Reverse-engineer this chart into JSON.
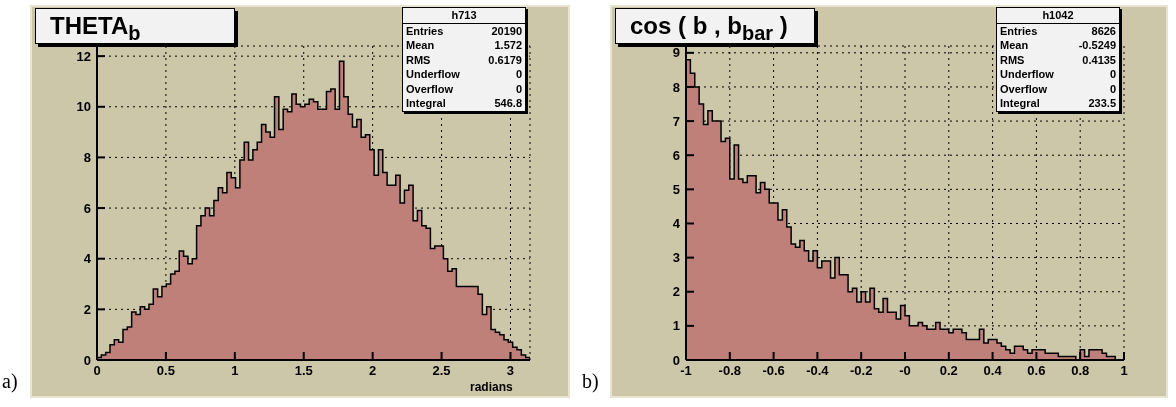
{
  "chart_data": [
    {
      "type": "histogram",
      "title": "THETA$_{b}$",
      "xlabel": "radians",
      "color": "#c0807a",
      "bins": [
        0,
        0.0314,
        0.0628,
        0.0942,
        0.1257,
        0.1571,
        0.1885,
        0.2199,
        0.2513,
        0.2827,
        0.3142,
        0.3456,
        0.377,
        0.4084,
        0.4398,
        0.4712,
        0.5027,
        0.5341,
        0.5655,
        0.5969,
        0.6283,
        0.6597,
        0.6912,
        0.7226,
        0.754,
        0.7854,
        0.8168,
        0.8482,
        0.8796,
        0.9111,
        0.9425,
        0.9739,
        1.0053,
        1.0367,
        1.0681,
        1.0996,
        1.131,
        1.1624,
        1.1938,
        1.2252,
        1.2566,
        1.2881,
        1.3195,
        1.3509,
        1.3823,
        1.4137,
        1.4451,
        1.4765,
        1.508,
        1.5394,
        1.5708,
        1.6022,
        1.6336,
        1.665,
        1.6965,
        1.7279,
        1.7593,
        1.7907,
        1.8221,
        1.8535,
        1.885,
        1.9164,
        1.9478,
        1.9792,
        2.0106,
        2.042,
        2.0735,
        2.1049,
        2.1363,
        2.1677,
        2.1991,
        2.2305,
        2.2619,
        2.2934,
        2.3248,
        2.3562,
        2.3876,
        2.419,
        2.4504,
        2.4819,
        2.5133,
        2.5447,
        2.5761,
        2.6075,
        2.6389,
        2.6704,
        2.7018,
        2.7332,
        2.7646,
        2.796,
        2.8274,
        2.8588,
        2.8903,
        2.9217,
        2.9531,
        2.9845,
        3.0159,
        3.0473,
        3.0788,
        3.1102,
        3.1416
      ],
      "values": [
        0.1,
        0.2,
        0.3,
        0.6,
        0.8,
        0.7,
        1.2,
        1.3,
        1.9,
        1.8,
        2.1,
        2.0,
        2.2,
        2.8,
        2.5,
        2.9,
        3.0,
        3.4,
        3.5,
        4.3,
        4.1,
        3.8,
        4.0,
        5.3,
        5.7,
        6.0,
        5.7,
        6.3,
        6.8,
        6.6,
        7.4,
        7.2,
        6.8,
        7.9,
        8.6,
        7.9,
        8.3,
        8.6,
        9.3,
        9.0,
        8.8,
        10.4,
        9.1,
        9.9,
        9.8,
        10.5,
        10.1,
        10.0,
        10.1,
        10.3,
        10.2,
        9.9,
        9.9,
        10.6,
        10.7,
        9.9,
        11.8,
        10.4,
        9.7,
        9.2,
        9.5,
        8.8,
        8.9,
        8.3,
        7.3,
        8.3,
        7.4,
        6.9,
        6.9,
        7.3,
        6.2,
        6.7,
        6.9,
        5.5,
        5.9,
        5.3,
        5.2,
        4.4,
        4.5,
        4.5,
        4.0,
        3.5,
        3.6,
        2.9,
        2.9,
        2.9,
        2.9,
        2.9,
        2.6,
        1.8,
        2.1,
        1.2,
        1.1,
        1.0,
        0.8,
        0.7,
        0.5,
        0.4,
        0.2,
        0.1
      ],
      "xlim": [
        0,
        3.1416
      ],
      "xticks": [
        0,
        0.5,
        1,
        1.5,
        2,
        2.5,
        3
      ],
      "ylim": [
        0,
        12.4
      ],
      "yticks": [
        0,
        2,
        4,
        6,
        8,
        10,
        12
      ],
      "grid": true,
      "annotations": [
        "a)",
        "h713",
        "Entries",
        "20190",
        "Mean",
        "1.572",
        "RMS",
        "0.6179",
        "Underflow",
        "0",
        "Overflow",
        "0",
        "Integral",
        "546.8"
      ]
    },
    {
      "type": "histogram",
      "title": "cos ( b , b$_{bar}$ )",
      "color": "#c0807a",
      "bins": [
        -1,
        -0.98,
        -0.96,
        -0.94,
        -0.92,
        -0.9,
        -0.88,
        -0.86,
        -0.84,
        -0.82,
        -0.8,
        -0.78,
        -0.76,
        -0.74,
        -0.72,
        -0.7,
        -0.68,
        -0.66,
        -0.64,
        -0.62,
        -0.6,
        -0.58,
        -0.56,
        -0.54,
        -0.52,
        -0.5,
        -0.48,
        -0.46,
        -0.44,
        -0.42,
        -0.4,
        -0.38,
        -0.36,
        -0.34,
        -0.32,
        -0.3,
        -0.28,
        -0.26,
        -0.24,
        -0.22,
        -0.2,
        -0.18,
        -0.16,
        -0.14,
        -0.12,
        -0.1,
        -0.08,
        -0.06,
        -0.04,
        -0.02,
        0,
        0.02,
        0.04,
        0.06,
        0.08,
        0.1,
        0.12,
        0.14,
        0.16,
        0.18,
        0.2,
        0.22,
        0.24,
        0.26,
        0.28,
        0.3,
        0.32,
        0.34,
        0.36,
        0.38,
        0.4,
        0.42,
        0.44,
        0.46,
        0.48,
        0.5,
        0.52,
        0.54,
        0.56,
        0.58,
        0.6,
        0.62,
        0.64,
        0.66,
        0.68,
        0.7,
        0.72,
        0.74,
        0.76,
        0.78,
        0.8,
        0.82,
        0.84,
        0.86,
        0.88,
        0.9,
        0.92,
        0.94,
        0.96,
        0.98,
        1
      ],
      "values": [
        8.8,
        8.4,
        8.0,
        7.5,
        6.9,
        7.3,
        7.0,
        7.0,
        6.4,
        6.5,
        5.3,
        6.3,
        5.3,
        5.2,
        5.4,
        5.4,
        4.9,
        5.2,
        5.0,
        4.6,
        4.6,
        4.1,
        4.4,
        3.9,
        3.4,
        3.3,
        3.5,
        3.2,
        2.9,
        3.2,
        2.7,
        2.9,
        2.9,
        2.4,
        3.0,
        2.5,
        2.5,
        2.0,
        2.1,
        1.7,
        2.0,
        1.7,
        2.1,
        1.5,
        1.4,
        1.8,
        1.4,
        1.4,
        1.2,
        1.6,
        1.3,
        1.0,
        1.0,
        1.1,
        1.0,
        0.9,
        0.9,
        1.1,
        0.9,
        0.9,
        0.8,
        0.9,
        0.9,
        0.8,
        0.6,
        0.6,
        0.6,
        0.9,
        0.5,
        0.6,
        0.6,
        0.5,
        0.4,
        0.3,
        0.2,
        0.4,
        0.4,
        0.3,
        0.2,
        0.3,
        0.3,
        0.3,
        0.2,
        0.2,
        0.2,
        0.1,
        0.1,
        0.1,
        0.1,
        0.0,
        0.3,
        0.1,
        0.3,
        0.3,
        0.3,
        0.2,
        0.1,
        0.1,
        0.0,
        0.0
      ],
      "xlim": [
        -1,
        1
      ],
      "xticks": [
        -1,
        -0.8,
        -0.6,
        -0.4,
        -0.2,
        {
          "value": 0,
          "label": "-0"
        },
        0.2,
        0.4,
        0.6,
        0.8,
        1
      ],
      "ylim": [
        0,
        9.2
      ],
      "yticks": [
        0,
        1,
        2,
        3,
        4,
        5,
        6,
        7,
        8,
        9
      ],
      "grid": true,
      "annotations": [
        "b)",
        "h1042",
        "Entries",
        "8626",
        "Mean",
        "-0.5249",
        "RMS",
        "0.4135",
        "Underflow",
        "0",
        "Overflow",
        "0",
        "Integral",
        "233.5"
      ]
    }
  ]
}
